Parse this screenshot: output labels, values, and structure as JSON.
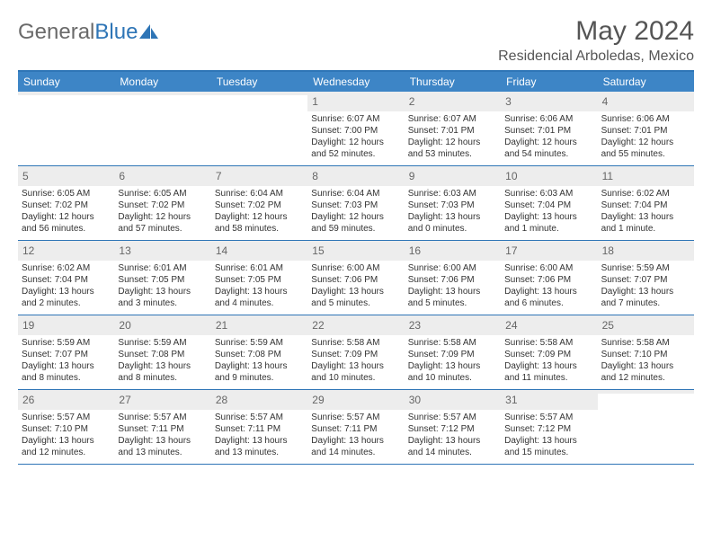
{
  "brand": {
    "general": "General",
    "blue": "Blue"
  },
  "title": "May 2024",
  "location": "Residencial Arboledas, Mexico",
  "colors": {
    "header_bar": "#3d85c6",
    "rule": "#2e75b6",
    "daynum_bg": "#ededed",
    "text": "#333333",
    "muted": "#666666",
    "logo_gray": "#6a6a6a"
  },
  "weekdays": [
    "Sunday",
    "Monday",
    "Tuesday",
    "Wednesday",
    "Thursday",
    "Friday",
    "Saturday"
  ],
  "weeks": [
    [
      {
        "n": "",
        "lines": []
      },
      {
        "n": "",
        "lines": []
      },
      {
        "n": "",
        "lines": []
      },
      {
        "n": "1",
        "lines": [
          "Sunrise: 6:07 AM",
          "Sunset: 7:00 PM",
          "Daylight: 12 hours",
          "and 52 minutes."
        ]
      },
      {
        "n": "2",
        "lines": [
          "Sunrise: 6:07 AM",
          "Sunset: 7:01 PM",
          "Daylight: 12 hours",
          "and 53 minutes."
        ]
      },
      {
        "n": "3",
        "lines": [
          "Sunrise: 6:06 AM",
          "Sunset: 7:01 PM",
          "Daylight: 12 hours",
          "and 54 minutes."
        ]
      },
      {
        "n": "4",
        "lines": [
          "Sunrise: 6:06 AM",
          "Sunset: 7:01 PM",
          "Daylight: 12 hours",
          "and 55 minutes."
        ]
      }
    ],
    [
      {
        "n": "5",
        "lines": [
          "Sunrise: 6:05 AM",
          "Sunset: 7:02 PM",
          "Daylight: 12 hours",
          "and 56 minutes."
        ]
      },
      {
        "n": "6",
        "lines": [
          "Sunrise: 6:05 AM",
          "Sunset: 7:02 PM",
          "Daylight: 12 hours",
          "and 57 minutes."
        ]
      },
      {
        "n": "7",
        "lines": [
          "Sunrise: 6:04 AM",
          "Sunset: 7:02 PM",
          "Daylight: 12 hours",
          "and 58 minutes."
        ]
      },
      {
        "n": "8",
        "lines": [
          "Sunrise: 6:04 AM",
          "Sunset: 7:03 PM",
          "Daylight: 12 hours",
          "and 59 minutes."
        ]
      },
      {
        "n": "9",
        "lines": [
          "Sunrise: 6:03 AM",
          "Sunset: 7:03 PM",
          "Daylight: 13 hours",
          "and 0 minutes."
        ]
      },
      {
        "n": "10",
        "lines": [
          "Sunrise: 6:03 AM",
          "Sunset: 7:04 PM",
          "Daylight: 13 hours",
          "and 1 minute."
        ]
      },
      {
        "n": "11",
        "lines": [
          "Sunrise: 6:02 AM",
          "Sunset: 7:04 PM",
          "Daylight: 13 hours",
          "and 1 minute."
        ]
      }
    ],
    [
      {
        "n": "12",
        "lines": [
          "Sunrise: 6:02 AM",
          "Sunset: 7:04 PM",
          "Daylight: 13 hours",
          "and 2 minutes."
        ]
      },
      {
        "n": "13",
        "lines": [
          "Sunrise: 6:01 AM",
          "Sunset: 7:05 PM",
          "Daylight: 13 hours",
          "and 3 minutes."
        ]
      },
      {
        "n": "14",
        "lines": [
          "Sunrise: 6:01 AM",
          "Sunset: 7:05 PM",
          "Daylight: 13 hours",
          "and 4 minutes."
        ]
      },
      {
        "n": "15",
        "lines": [
          "Sunrise: 6:00 AM",
          "Sunset: 7:06 PM",
          "Daylight: 13 hours",
          "and 5 minutes."
        ]
      },
      {
        "n": "16",
        "lines": [
          "Sunrise: 6:00 AM",
          "Sunset: 7:06 PM",
          "Daylight: 13 hours",
          "and 5 minutes."
        ]
      },
      {
        "n": "17",
        "lines": [
          "Sunrise: 6:00 AM",
          "Sunset: 7:06 PM",
          "Daylight: 13 hours",
          "and 6 minutes."
        ]
      },
      {
        "n": "18",
        "lines": [
          "Sunrise: 5:59 AM",
          "Sunset: 7:07 PM",
          "Daylight: 13 hours",
          "and 7 minutes."
        ]
      }
    ],
    [
      {
        "n": "19",
        "lines": [
          "Sunrise: 5:59 AM",
          "Sunset: 7:07 PM",
          "Daylight: 13 hours",
          "and 8 minutes."
        ]
      },
      {
        "n": "20",
        "lines": [
          "Sunrise: 5:59 AM",
          "Sunset: 7:08 PM",
          "Daylight: 13 hours",
          "and 8 minutes."
        ]
      },
      {
        "n": "21",
        "lines": [
          "Sunrise: 5:59 AM",
          "Sunset: 7:08 PM",
          "Daylight: 13 hours",
          "and 9 minutes."
        ]
      },
      {
        "n": "22",
        "lines": [
          "Sunrise: 5:58 AM",
          "Sunset: 7:09 PM",
          "Daylight: 13 hours",
          "and 10 minutes."
        ]
      },
      {
        "n": "23",
        "lines": [
          "Sunrise: 5:58 AM",
          "Sunset: 7:09 PM",
          "Daylight: 13 hours",
          "and 10 minutes."
        ]
      },
      {
        "n": "24",
        "lines": [
          "Sunrise: 5:58 AM",
          "Sunset: 7:09 PM",
          "Daylight: 13 hours",
          "and 11 minutes."
        ]
      },
      {
        "n": "25",
        "lines": [
          "Sunrise: 5:58 AM",
          "Sunset: 7:10 PM",
          "Daylight: 13 hours",
          "and 12 minutes."
        ]
      }
    ],
    [
      {
        "n": "26",
        "lines": [
          "Sunrise: 5:57 AM",
          "Sunset: 7:10 PM",
          "Daylight: 13 hours",
          "and 12 minutes."
        ]
      },
      {
        "n": "27",
        "lines": [
          "Sunrise: 5:57 AM",
          "Sunset: 7:11 PM",
          "Daylight: 13 hours",
          "and 13 minutes."
        ]
      },
      {
        "n": "28",
        "lines": [
          "Sunrise: 5:57 AM",
          "Sunset: 7:11 PM",
          "Daylight: 13 hours",
          "and 13 minutes."
        ]
      },
      {
        "n": "29",
        "lines": [
          "Sunrise: 5:57 AM",
          "Sunset: 7:11 PM",
          "Daylight: 13 hours",
          "and 14 minutes."
        ]
      },
      {
        "n": "30",
        "lines": [
          "Sunrise: 5:57 AM",
          "Sunset: 7:12 PM",
          "Daylight: 13 hours",
          "and 14 minutes."
        ]
      },
      {
        "n": "31",
        "lines": [
          "Sunrise: 5:57 AM",
          "Sunset: 7:12 PM",
          "Daylight: 13 hours",
          "and 15 minutes."
        ]
      },
      {
        "n": "",
        "lines": []
      }
    ]
  ]
}
